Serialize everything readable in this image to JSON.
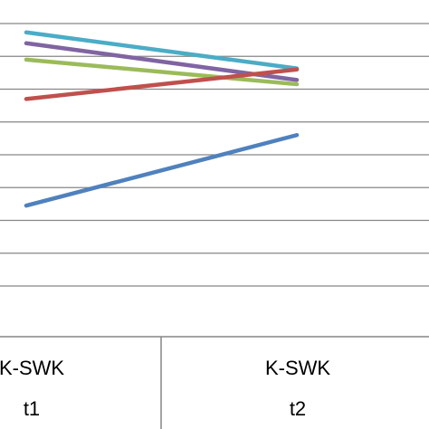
{
  "chart_data": {
    "type": "line",
    "categories": [
      {
        "line1": "K-SWK",
        "line2": "t1"
      },
      {
        "line1": "K-SWK",
        "line2": "t2"
      }
    ],
    "x": [
      "K-SWK t1",
      "K-SWK t2"
    ],
    "series": [
      {
        "color": "#4BACC6",
        "values": [
          5.73,
          4.63
        ]
      },
      {
        "color": "#8064A2",
        "values": [
          5.4,
          4.28
        ]
      },
      {
        "color": "#9BBB59",
        "values": [
          4.9,
          4.15
        ]
      },
      {
        "color": "#C0504D",
        "values": [
          3.7,
          4.6
        ]
      },
      {
        "color": "#4F81BD",
        "values": [
          0.45,
          2.6
        ]
      }
    ],
    "ylim": [
      -2,
      6
    ],
    "grid": true,
    "legend": "none"
  }
}
